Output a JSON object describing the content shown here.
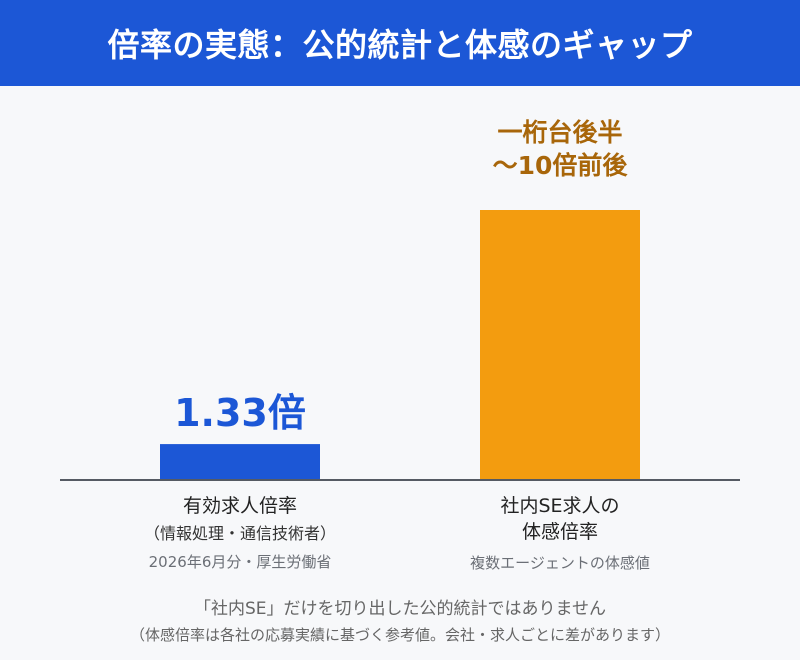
{
  "header": {
    "title": "倍率の実態：公的統計と体感のギャップ",
    "bg_color": "#1c57d6"
  },
  "chart_data": {
    "type": "bar",
    "categories": [
      "有効求人倍率",
      "社内SE求人の体感倍率"
    ],
    "category_labels": [
      {
        "line1": "有効求人倍率",
        "line2": "（情報処理・通信技術者）",
        "note": "2026年6月分・厚生労働省"
      },
      {
        "line1": "社内SE求人の",
        "line2": "体感倍率",
        "note": "複数エージェントの体感値"
      }
    ],
    "values": [
      1.33,
      10
    ],
    "value_labels": [
      {
        "lines": [
          "1.33倍"
        ],
        "color": "#1c57d6"
      },
      {
        "lines": [
          "一桁台後半",
          "〜10倍前後"
        ],
        "color": "#a8660a"
      }
    ],
    "bar_colors": [
      "#1c57d6",
      "#f39c0f"
    ],
    "ylim": [
      0,
      10.5
    ],
    "grid": false
  },
  "footnotes": {
    "line1": "「社内SE」だけを切り出した公的統計ではありません",
    "line2": "（体感倍率は各社の応募実績に基づく参考値。会社・求人ごとに差があります）"
  }
}
